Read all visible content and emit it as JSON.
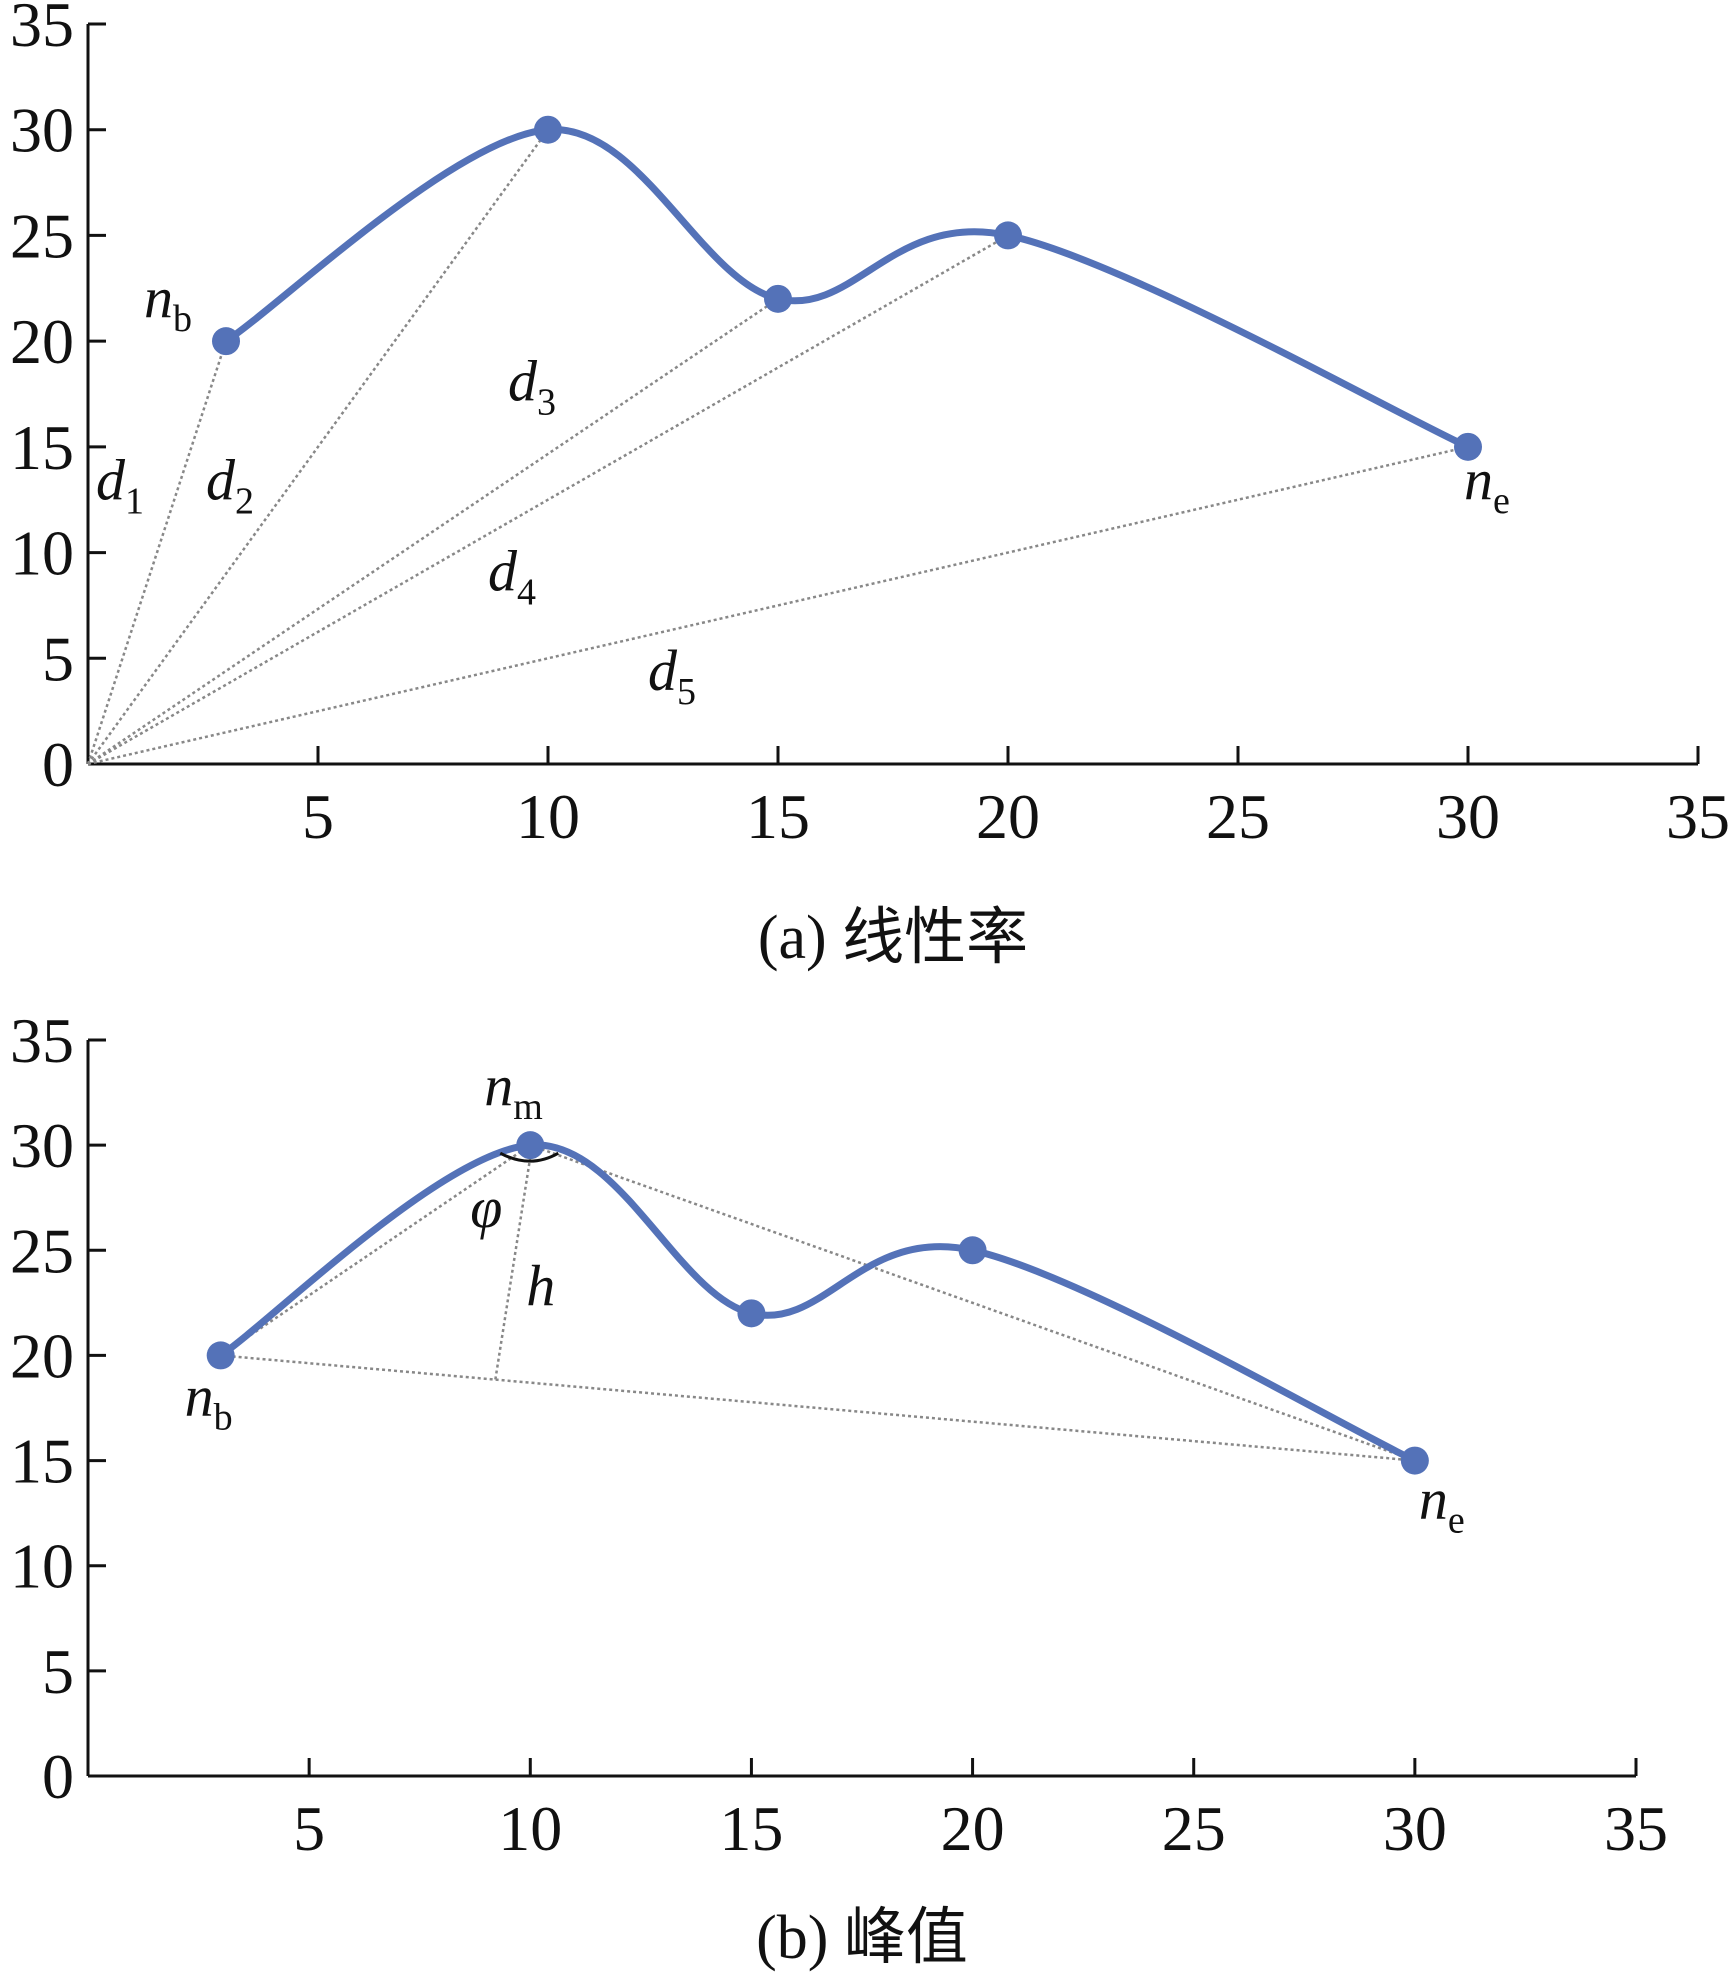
{
  "colors": {
    "curve": "#5472b8",
    "marker": "#5472b8",
    "aux": "#888888",
    "axis": "#111111"
  },
  "chart_data": [
    {
      "type": "line",
      "caption": "(a) 线性率",
      "points": [
        {
          "x": 3,
          "y": 20
        },
        {
          "x": 10,
          "y": 30
        },
        {
          "x": 15,
          "y": 22
        },
        {
          "x": 20,
          "y": 25
        },
        {
          "x": 30,
          "y": 15
        }
      ],
      "xlim": [
        0,
        35
      ],
      "ylim": [
        0,
        35
      ],
      "x_ticks": [
        "5",
        "10",
        "15",
        "20",
        "25",
        "30",
        "35"
      ],
      "y_ticks": [
        "0",
        "5",
        "10",
        "15",
        "20",
        "25",
        "30",
        "35"
      ],
      "annotations": [
        {
          "base": "n",
          "sub": "b"
        },
        {
          "base": "n",
          "sub": "e"
        },
        {
          "base": "d",
          "sub": "1"
        },
        {
          "base": "d",
          "sub": "2"
        },
        {
          "base": "d",
          "sub": "3"
        },
        {
          "base": "d",
          "sub": "4"
        },
        {
          "base": "d",
          "sub": "5"
        }
      ]
    },
    {
      "type": "line",
      "caption": "(b) 峰值",
      "points": [
        {
          "x": 3,
          "y": 20
        },
        {
          "x": 10,
          "y": 30
        },
        {
          "x": 15,
          "y": 22
        },
        {
          "x": 20,
          "y": 25
        },
        {
          "x": 30,
          "y": 15
        }
      ],
      "xlim": [
        0,
        35
      ],
      "ylim": [
        0,
        35
      ],
      "x_ticks": [
        "5",
        "10",
        "15",
        "20",
        "25",
        "30",
        "35"
      ],
      "y_ticks": [
        "0",
        "5",
        "10",
        "15",
        "20",
        "25",
        "30",
        "35"
      ],
      "annotations": [
        {
          "base": "n",
          "sub": "m"
        },
        {
          "base": "n",
          "sub": "b"
        },
        {
          "base": "n",
          "sub": "e"
        },
        {
          "base": "φ",
          "sub": ""
        },
        {
          "base": "h",
          "sub": ""
        }
      ]
    }
  ]
}
